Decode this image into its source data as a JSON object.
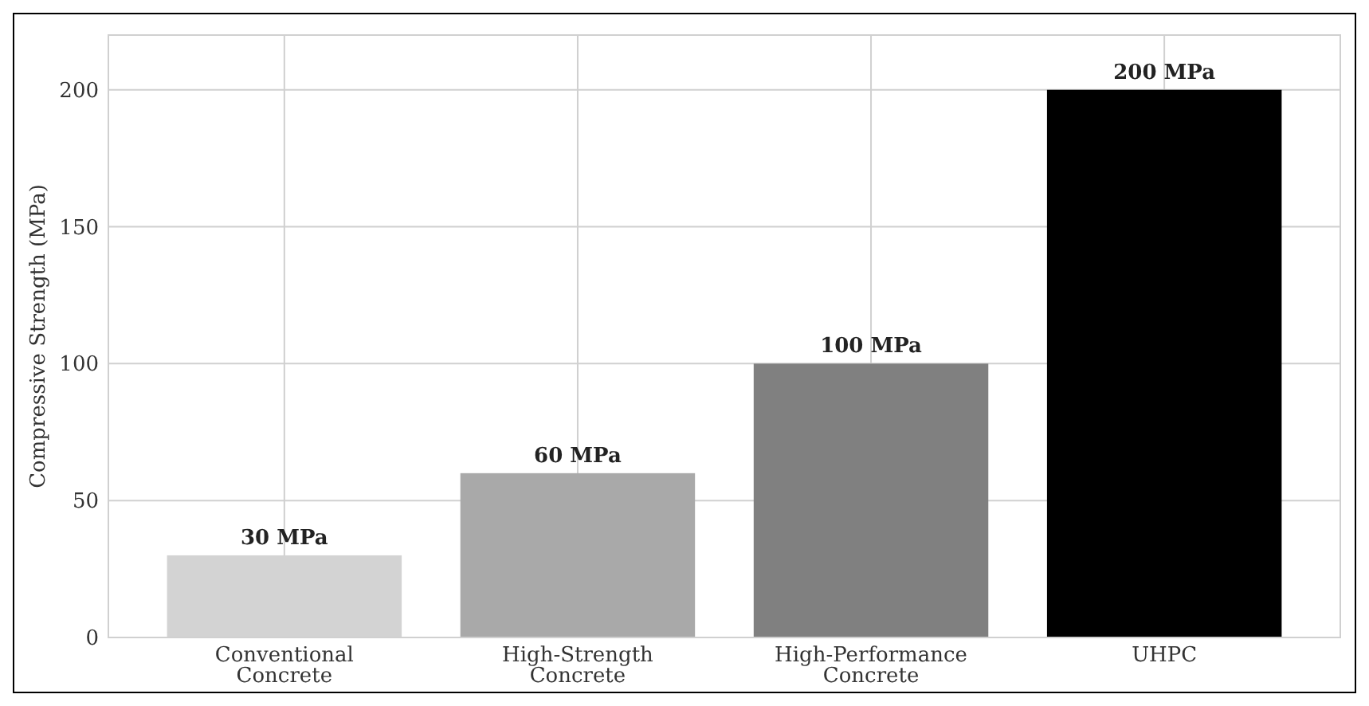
{
  "chart_data": {
    "type": "bar",
    "ylabel": "Compressive Strength (MPa)",
    "categories": [
      "Conventional Concrete",
      "High-Strength Concrete",
      "High-Performance Concrete",
      "UHPC"
    ],
    "values": [
      30,
      60,
      100,
      200
    ],
    "colors": [
      "#d3d3d3",
      "#a9a9a9",
      "#808080",
      "#000000"
    ],
    "value_labels": [
      "30 MPa",
      "60 MPa",
      "100 MPa",
      "200 MPa"
    ],
    "ylim": [
      0,
      220
    ],
    "yticks": [
      0,
      50,
      100,
      150,
      200
    ],
    "grid": true
  }
}
